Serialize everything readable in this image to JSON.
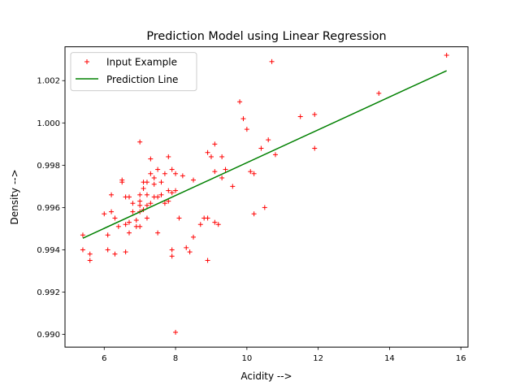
{
  "chart_data": {
    "type": "scatter",
    "title": "Prediction Model using Linear Regression",
    "xlabel": "Acidity -->",
    "ylabel": "Density -->",
    "xlim": [
      4.9,
      16.2
    ],
    "ylim": [
      0.9894,
      1.0036
    ],
    "xticks": [
      6,
      8,
      10,
      12,
      14,
      16
    ],
    "yticks": [
      0.99,
      0.992,
      0.994,
      0.996,
      0.998,
      1.0,
      1.002
    ],
    "ytick_labels": [
      "0.990",
      "0.992",
      "0.994",
      "0.996",
      "0.998",
      "1.000",
      "1.002"
    ],
    "grid": false,
    "legend_position": "top-left",
    "series": [
      {
        "name": "Input Example",
        "kind": "scatter",
        "marker": "+",
        "color": "#ff0000",
        "x": [
          5.4,
          5.4,
          5.6,
          5.6,
          6.0,
          6.1,
          6.1,
          6.2,
          6.2,
          6.3,
          6.3,
          6.4,
          6.5,
          6.5,
          6.6,
          6.6,
          6.6,
          6.7,
          6.7,
          6.7,
          6.8,
          6.8,
          6.9,
          6.9,
          7.0,
          7.0,
          7.0,
          7.0,
          7.0,
          7.0,
          7.1,
          7.1,
          7.1,
          7.2,
          7.2,
          7.2,
          7.2,
          7.3,
          7.3,
          7.3,
          7.4,
          7.4,
          7.4,
          7.5,
          7.5,
          7.5,
          7.6,
          7.6,
          7.7,
          7.7,
          7.8,
          7.8,
          7.8,
          7.9,
          7.9,
          7.9,
          7.9,
          8.0,
          8.0,
          8.0,
          8.1,
          8.2,
          8.3,
          8.4,
          8.5,
          8.5,
          8.7,
          8.8,
          8.9,
          8.9,
          8.9,
          9.0,
          9.1,
          9.1,
          9.1,
          9.2,
          9.3,
          9.3,
          9.4,
          9.6,
          9.8,
          9.9,
          10.0,
          10.1,
          10.2,
          10.2,
          10.4,
          10.5,
          10.6,
          10.7,
          10.8,
          11.5,
          11.9,
          11.9,
          13.7,
          15.6
        ],
        "y": [
          0.9947,
          0.994,
          0.9938,
          0.9935,
          0.9957,
          0.9947,
          0.994,
          0.9966,
          0.9958,
          0.9955,
          0.9938,
          0.9951,
          0.9973,
          0.9972,
          0.9965,
          0.9952,
          0.9939,
          0.9965,
          0.9953,
          0.9948,
          0.9962,
          0.9958,
          0.9951,
          0.9954,
          0.9991,
          0.9966,
          0.9963,
          0.9961,
          0.9958,
          0.9951,
          0.9972,
          0.9969,
          0.9959,
          0.9972,
          0.9966,
          0.9961,
          0.9955,
          0.9983,
          0.9976,
          0.9962,
          0.9974,
          0.9971,
          0.9965,
          0.9978,
          0.9965,
          0.9948,
          0.9972,
          0.9966,
          0.9976,
          0.9962,
          0.9984,
          0.9968,
          0.9963,
          0.9978,
          0.9967,
          0.994,
          0.9937,
          0.9976,
          0.9968,
          0.9901,
          0.9955,
          0.9975,
          0.9941,
          0.9939,
          0.9973,
          0.9946,
          0.9952,
          0.9955,
          0.9986,
          0.9955,
          0.9935,
          0.9984,
          0.999,
          0.9977,
          0.9953,
          0.9952,
          0.9984,
          0.9974,
          0.9978,
          0.997,
          1.001,
          1.0002,
          0.9997,
          0.9977,
          0.9976,
          0.9957,
          0.9988,
          0.996,
          0.9992,
          1.0029,
          0.9985,
          1.0003,
          1.0004,
          0.9988,
          1.0014,
          1.0032
        ]
      },
      {
        "name": "Prediction Line",
        "kind": "line",
        "color": "#008000",
        "x": [
          5.4,
          15.6
        ],
        "y": [
          0.99455,
          1.00247
        ]
      }
    ]
  }
}
